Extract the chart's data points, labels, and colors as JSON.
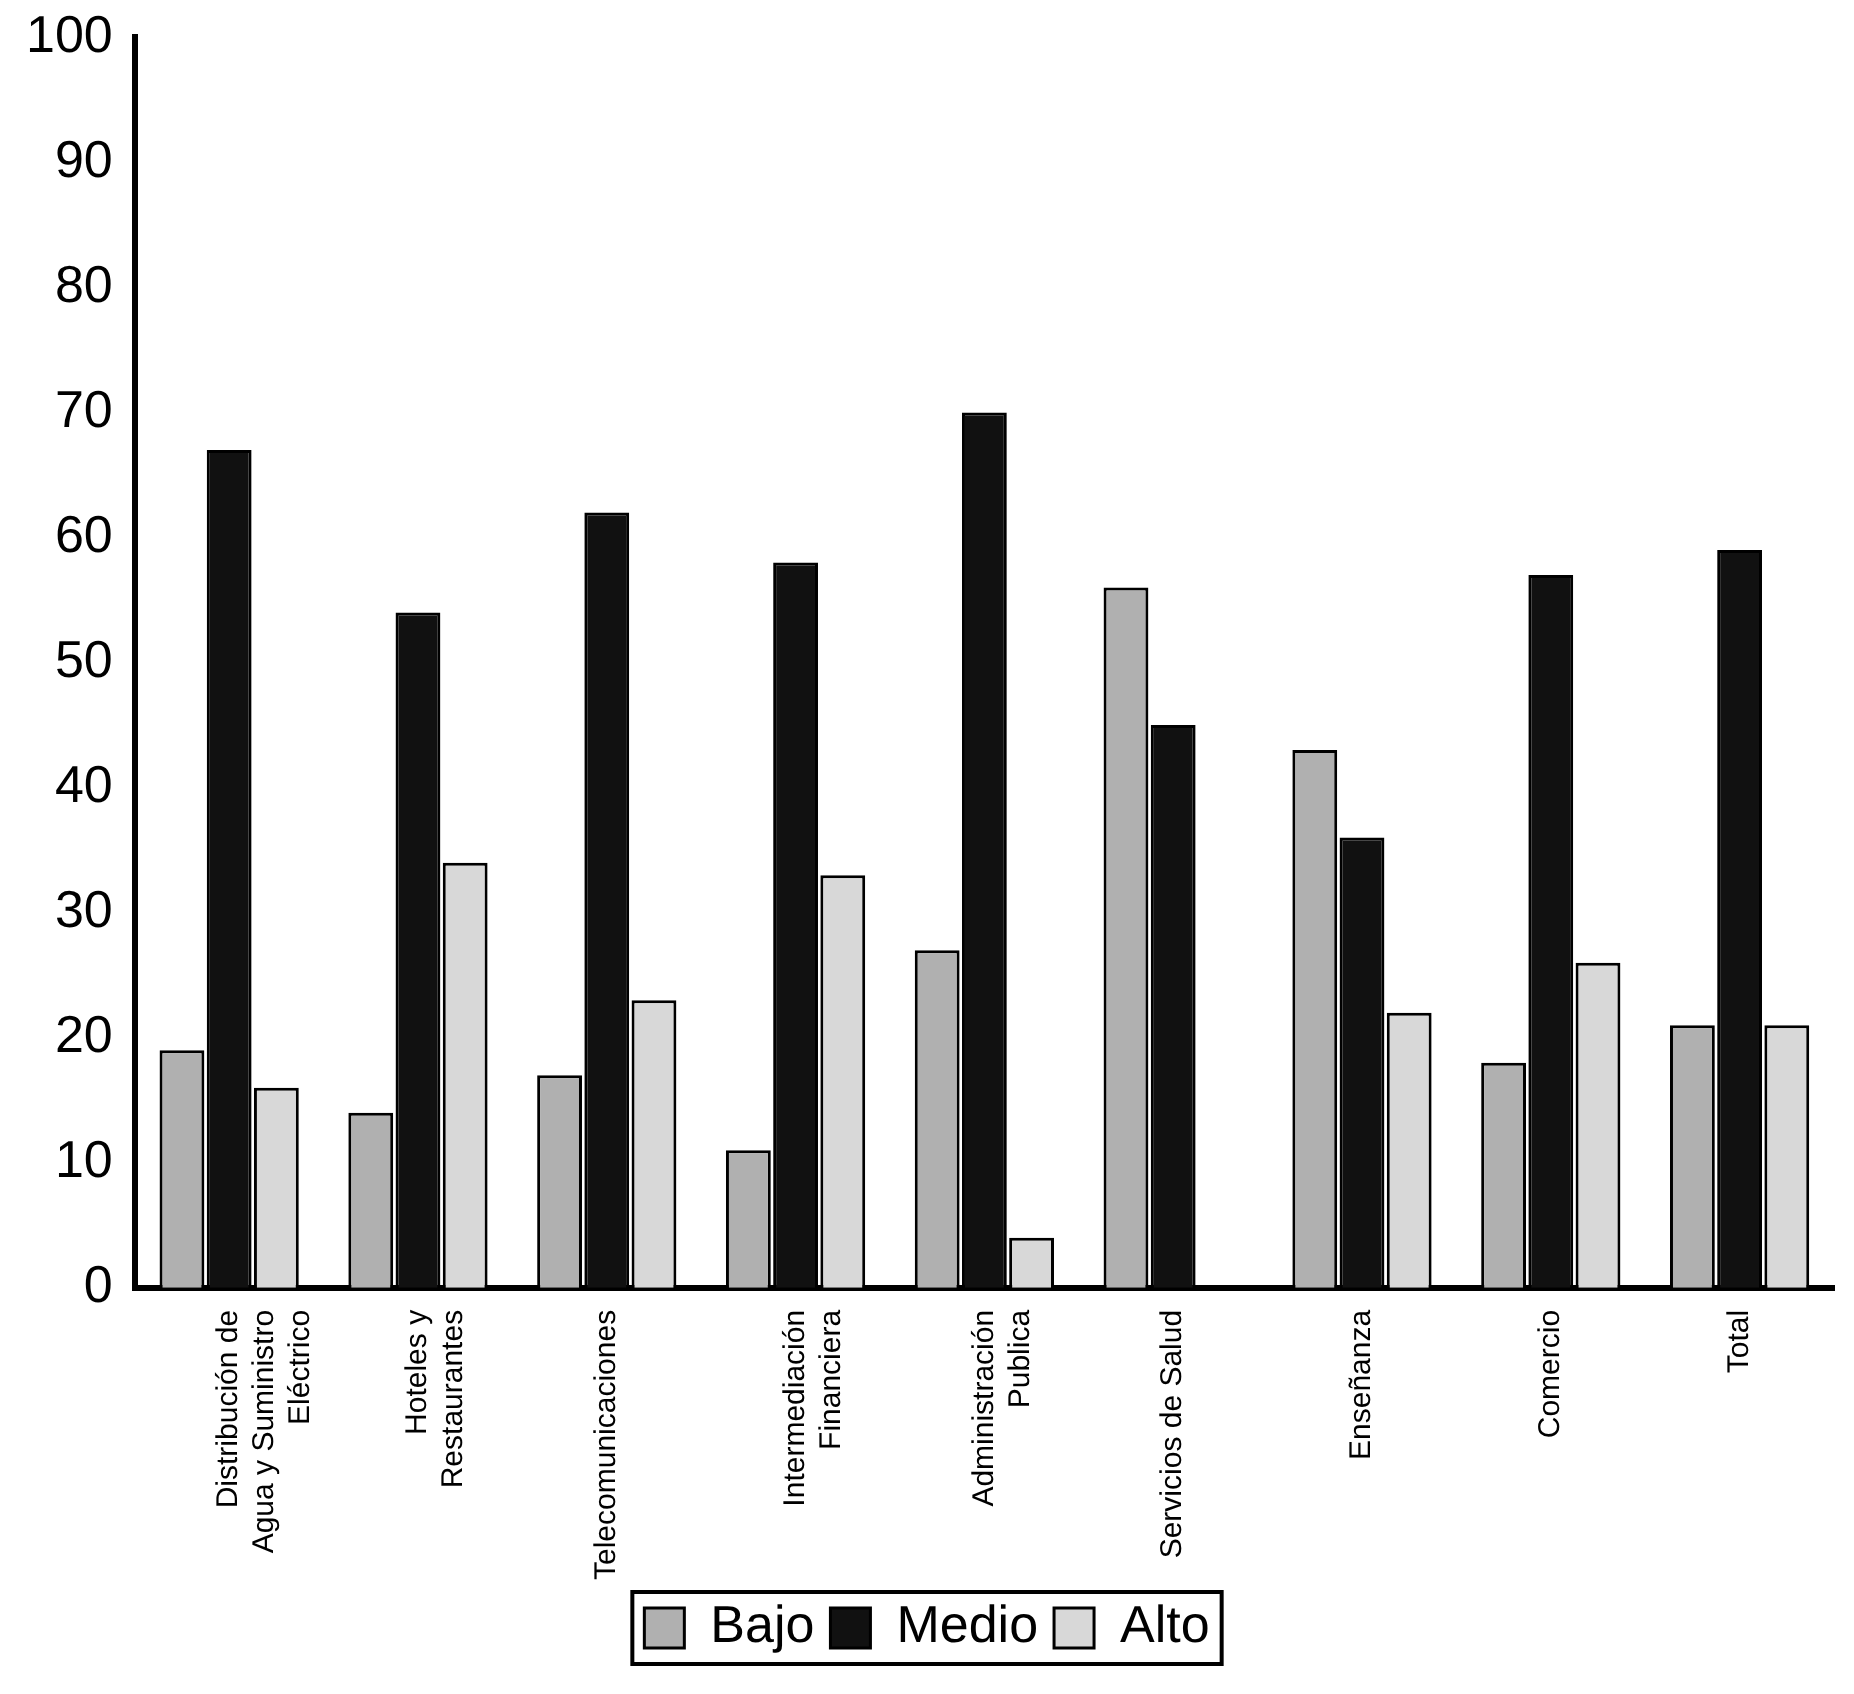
{
  "chart_data": {
    "type": "bar",
    "categories": [
      "Distribución de\nAgua y Suministro\nEléctrico",
      "Hoteles y\nRestaurantes",
      "Telecomunicaciones",
      "Intermediación\nFinanciera",
      "Administración\nPublica",
      "Servicios de Salud",
      "Enseñanza",
      "Comercio",
      "Total"
    ],
    "series": [
      {
        "name": "Bajo",
        "color": "#b0b0b0",
        "values": [
          19,
          14,
          17,
          11,
          27,
          56,
          43,
          18,
          21
        ]
      },
      {
        "name": "Medio",
        "color": "#111111",
        "values": [
          67,
          54,
          62,
          58,
          70,
          45,
          36,
          57,
          59
        ]
      },
      {
        "name": "Alto",
        "color": "#d8d8d8",
        "values": [
          16,
          34,
          23,
          33,
          4,
          0,
          22,
          26,
          21
        ]
      }
    ],
    "ylim": [
      0,
      100
    ],
    "yticks": [
      0,
      10,
      20,
      30,
      40,
      50,
      60,
      70,
      80,
      90,
      100
    ],
    "grid": false,
    "legend": "bottom"
  }
}
